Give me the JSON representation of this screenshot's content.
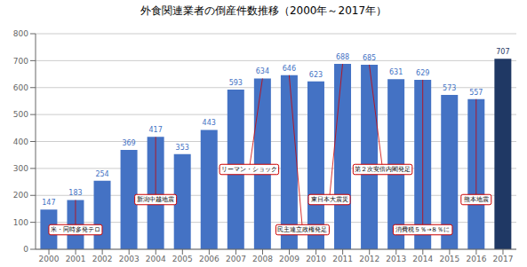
{
  "chart_data": {
    "type": "bar",
    "title": "外食関連業者の倒産件数推移（2000年～2017年）",
    "categories": [
      "2000",
      "2001",
      "2002",
      "2003",
      "2004",
      "2005",
      "2006",
      "2007",
      "2008",
      "2009",
      "2010",
      "2011",
      "2012",
      "2013",
      "2014",
      "2015",
      "2016",
      "2017"
    ],
    "values": [
      147,
      183,
      254,
      369,
      417,
      353,
      443,
      593,
      634,
      646,
      623,
      688,
      685,
      631,
      629,
      573,
      557,
      707
    ],
    "colors": [
      "#4472C4",
      "#4472C4",
      "#4472C4",
      "#4472C4",
      "#4472C4",
      "#4472C4",
      "#4472C4",
      "#4472C4",
      "#4472C4",
      "#4472C4",
      "#4472C4",
      "#4472C4",
      "#4472C4",
      "#4472C4",
      "#4472C4",
      "#4472C4",
      "#4472C4",
      "#1F3864"
    ],
    "ylim": [
      0,
      800
    ],
    "yticks": [
      0,
      100,
      200,
      300,
      400,
      500,
      600,
      700,
      800
    ],
    "grid": true,
    "data_labels": true,
    "annotations": [
      {
        "text": "米・同時多発テロ",
        "category": "2001",
        "color": "#CC0000"
      },
      {
        "text": "新潟中越地震",
        "category": "2004",
        "color": "#CC0000"
      },
      {
        "text": "リーマン・ショック",
        "category": "2008",
        "color": "#CC0000"
      },
      {
        "text": "民主連立政権発足",
        "category": "2009",
        "color": "#CC0000"
      },
      {
        "text": "東日本大震災",
        "category": "2011",
        "color": "#CC0000"
      },
      {
        "text": "第２次安倍内閣発足",
        "category": "2012",
        "color": "#CC0000"
      },
      {
        "text": "消費税５％→８％に",
        "category": "2014",
        "color": "#CC0000"
      },
      {
        "text": "熊本地震",
        "category": "2016",
        "color": "#CC0000"
      }
    ]
  }
}
